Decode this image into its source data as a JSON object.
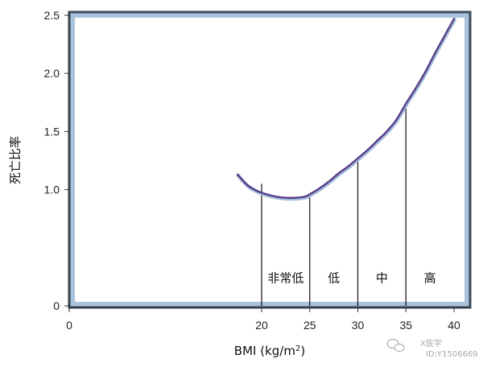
{
  "chart_data": {
    "type": "line",
    "title": "",
    "xlabel": "BMI (kg/m",
    "xlabel_sup": "2",
    "xlabel_close": ")",
    "ylabel": "死亡比率",
    "xlim": [
      0,
      42
    ],
    "ylim": [
      0,
      2.5
    ],
    "grid": false,
    "x_ticks": [
      0,
      20,
      25,
      30,
      35,
      40
    ],
    "x_tick_labels": [
      "0",
      "20",
      "25",
      "30",
      "35",
      "40"
    ],
    "y_ticks": [
      0,
      1.0,
      1.5,
      2.0,
      2.5
    ],
    "y_tick_labels": [
      "0",
      "1.0",
      "1.5",
      "2.0",
      "2.5"
    ],
    "series": [
      {
        "x": [
          17.5,
          18.5,
          19.5,
          20.5,
          21.5,
          22.5,
          23.5,
          24.5,
          25.0,
          26.0,
          27.0,
          28.0,
          29.0,
          30.0,
          31.0,
          32.0,
          33.0,
          34.0,
          35.0,
          36.0,
          37.0,
          38.0,
          39.0,
          40.0
        ],
        "y": [
          1.13,
          1.04,
          0.99,
          0.96,
          0.94,
          0.93,
          0.93,
          0.94,
          0.96,
          1.01,
          1.07,
          1.14,
          1.2,
          1.27,
          1.34,
          1.42,
          1.5,
          1.6,
          1.74,
          1.87,
          2.01,
          2.17,
          2.32,
          2.47
        ],
        "color": "#5a3d8a"
      }
    ],
    "dividers": [
      {
        "x": 20,
        "y": 1.05
      },
      {
        "x": 25,
        "y": 0.95
      },
      {
        "x": 30,
        "y": 1.27
      },
      {
        "x": 35,
        "y": 1.74
      }
    ],
    "bands": [
      {
        "label": "非常低",
        "x": 22.5
      },
      {
        "label": "低",
        "x": 27.5
      },
      {
        "label": "中",
        "x": 32.5
      },
      {
        "label": "高",
        "x": 37.5
      }
    ],
    "band_label_y": 0.24
  },
  "colors": {
    "frame_outer": "#3c4a5c",
    "frame_inner": "#a9c3dc",
    "curve_main": "#5a3d8a",
    "curve_shadow": "#9fbbd8",
    "divider": "#111111",
    "axis": "#333333"
  },
  "watermark": {
    "icon": "wechat-icon",
    "line1": "X医学",
    "line2": "ID:Y1506669"
  }
}
